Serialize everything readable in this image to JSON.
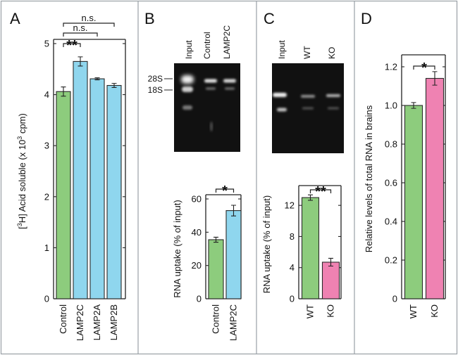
{
  "colors": {
    "green": "#8dcc7d",
    "blue": "#8fd6ee",
    "pink": "#ef82b2",
    "bar_edge": "#2a2a2a",
    "gel": "#111111"
  },
  "chart_data": [
    {
      "panel": "A",
      "type": "bar",
      "title": "",
      "xlabel": "",
      "ylabel": "[³H] Acid soluble (x 10³ cpm)",
      "ylabel_parts": [
        "[",
        "3",
        "H] Acid soluble (x 10",
        "3",
        " cpm)"
      ],
      "ylim": [
        0,
        5
      ],
      "yticks": [
        0,
        1,
        2,
        3,
        4,
        5
      ],
      "ytick_labels": [
        "0",
        "1",
        "2",
        "3",
        "4",
        "5"
      ],
      "categories": [
        "Control",
        "LAMP2C",
        "LAMP2A",
        "LAMP2B"
      ],
      "values": [
        4.06,
        4.65,
        4.31,
        4.18
      ],
      "errors": [
        0.09,
        0.09,
        0.02,
        0.04
      ],
      "bar_colors": [
        "green",
        "blue",
        "blue",
        "blue"
      ],
      "significance": [
        {
          "from": 0,
          "to": 1,
          "label": "**"
        },
        {
          "from": 0,
          "to": 2,
          "label": "n.s."
        },
        {
          "from": 0,
          "to": 3,
          "label": "n.s."
        }
      ],
      "grid": false,
      "legend": "none"
    },
    {
      "panel": "B",
      "type": "bar",
      "title": "",
      "xlabel": "",
      "ylabel": "RNA uptake (% of input)",
      "ylim": [
        0,
        60
      ],
      "yticks": [
        0,
        20,
        40,
        60
      ],
      "ytick_labels": [
        "0",
        "20",
        "40",
        "60"
      ],
      "categories": [
        "Control",
        "LAMP2C"
      ],
      "values": [
        35.5,
        53
      ],
      "errors": [
        1.5,
        3.2
      ],
      "bar_colors": [
        "green",
        "blue"
      ],
      "significance": [
        {
          "from": 0,
          "to": 1,
          "label": "*"
        }
      ],
      "grid": false,
      "legend": "none"
    },
    {
      "panel": "C",
      "type": "bar",
      "title": "",
      "xlabel": "",
      "ylabel": "RNA uptake (% of input)",
      "ylim": [
        0,
        14
      ],
      "yticks": [
        0,
        4,
        8,
        12
      ],
      "ytick_labels": [
        "0",
        "4",
        "8",
        "12"
      ],
      "categories": [
        "WT",
        "KO"
      ],
      "values": [
        13.0,
        4.7
      ],
      "errors": [
        0.35,
        0.5
      ],
      "bar_colors": [
        "green",
        "pink"
      ],
      "significance": [
        {
          "from": 0,
          "to": 1,
          "label": "**"
        }
      ],
      "grid": false,
      "legend": "none"
    },
    {
      "panel": "D",
      "type": "bar",
      "title": "",
      "xlabel": "",
      "ylabel": "Relative levels of total RNA in brains",
      "ylim": [
        0,
        1.24
      ],
      "yticks": [
        0,
        0.2,
        0.4,
        0.6,
        0.8,
        1.0,
        1.2
      ],
      "ytick_labels": [
        "0",
        "0.2",
        "0.4",
        "0.6",
        "0.8",
        "1.0",
        "1.2"
      ],
      "categories": [
        "WT",
        "KO"
      ],
      "values": [
        1.0,
        1.14
      ],
      "errors": [
        0.015,
        0.035
      ],
      "bar_colors": [
        "green",
        "pink"
      ],
      "significance": [
        {
          "from": 0,
          "to": 1,
          "label": "*"
        }
      ],
      "grid": false,
      "legend": "none"
    }
  ],
  "gels": [
    {
      "panel": "B",
      "lanes": [
        "Input",
        "Control",
        "LAMP2C"
      ],
      "band_labels": [
        "28S",
        "18S"
      ]
    },
    {
      "panel": "C",
      "lanes": [
        "Input",
        "WT",
        "KO"
      ],
      "band_labels": []
    }
  ]
}
